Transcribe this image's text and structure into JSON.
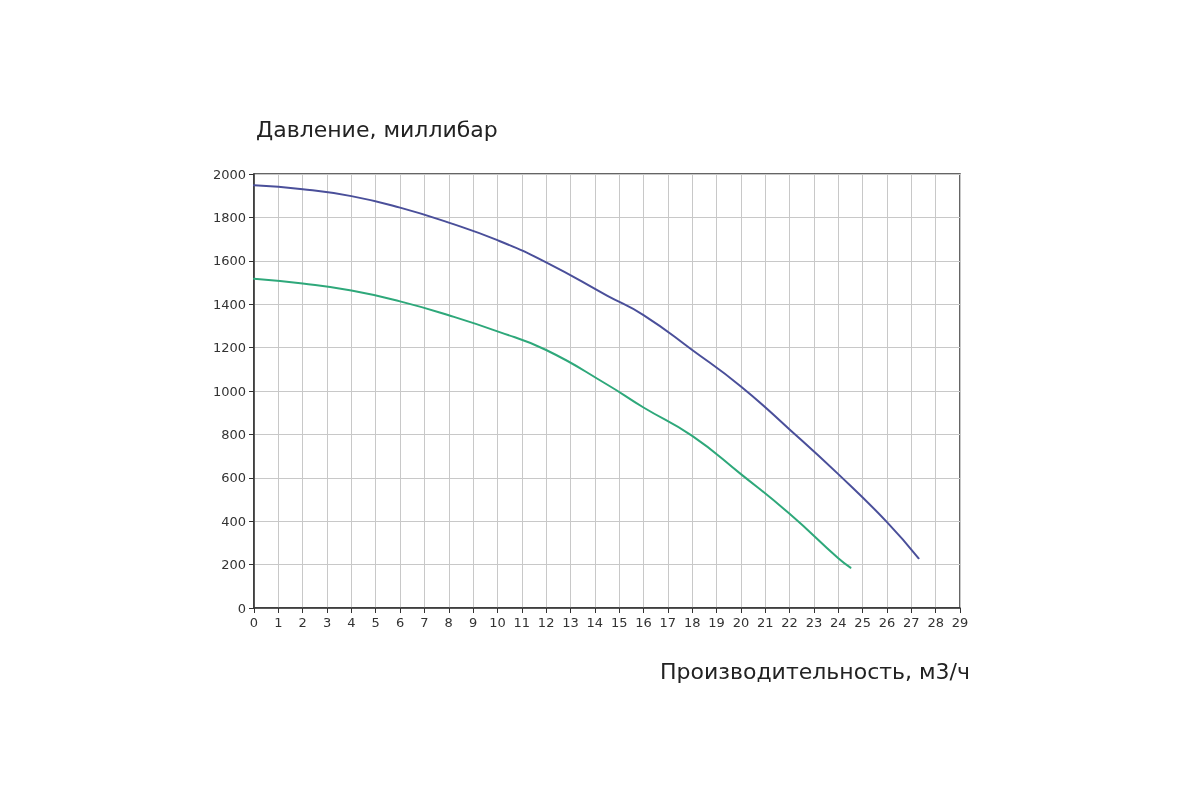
{
  "chart_data": {
    "type": "line",
    "xlabel": "Производительность, м3/ч",
    "ylabel": "Давление, миллибар",
    "xlim": [
      0,
      29
    ],
    "xticks": [
      0,
      1,
      2,
      3,
      4,
      5,
      6,
      7,
      8,
      9,
      10,
      11,
      12,
      13,
      14,
      15,
      16,
      17,
      18,
      19,
      20,
      21,
      22,
      23,
      24,
      25,
      26,
      27,
      28,
      29
    ],
    "ylim": [
      0,
      2000
    ],
    "yticks": [
      0,
      200,
      400,
      600,
      800,
      1000,
      1200,
      1400,
      1600,
      1800,
      2000
    ],
    "grid": true,
    "marker": "none",
    "line_style": "solid",
    "series": [
      {
        "color": "#4a4f9a",
        "x": [
          0,
          2,
          4,
          6,
          8,
          10,
          12,
          14.5,
          16,
          18,
          20,
          22,
          24,
          26,
          27.3
        ],
        "values": [
          1948,
          1930,
          1898,
          1845,
          1776,
          1695,
          1593,
          1440,
          1350,
          1189,
          1021,
          823,
          617,
          396,
          229
        ]
      },
      {
        "color": "#2ea87a",
        "x": [
          0,
          2,
          4,
          6,
          8,
          10,
          12,
          14.5,
          16,
          18,
          20,
          22,
          24,
          24.5
        ],
        "values": [
          1517,
          1495,
          1463,
          1413,
          1349,
          1275,
          1189,
          1030,
          924,
          793,
          617,
          434,
          229,
          186
        ]
      }
    ]
  }
}
